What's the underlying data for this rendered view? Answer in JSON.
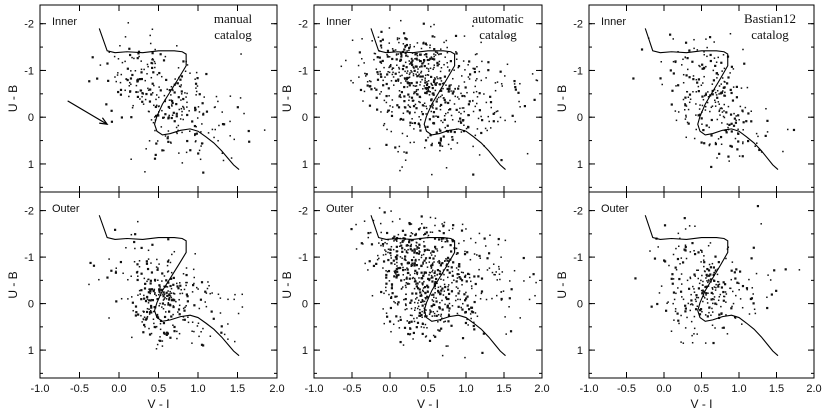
{
  "chart_data": {
    "type": "scatter",
    "title": "",
    "xlabel": "V - I",
    "ylabel": "U - B",
    "xlim": [
      -1.0,
      2.0
    ],
    "ylim": [
      1.6,
      -2.4
    ],
    "x_ticks": [
      "-1.0",
      "-0.5",
      "0.0",
      "0.5",
      "1.0",
      "1.5",
      "2.0"
    ],
    "y_ticks": [
      "-2",
      "-1",
      "0",
      "1"
    ],
    "grid": false,
    "model_track": {
      "x": [
        -0.25,
        -0.15,
        -0.05,
        0.1,
        0.3,
        0.5,
        0.7,
        0.8,
        0.85,
        0.85,
        0.75,
        0.65,
        0.55,
        0.48,
        0.45,
        0.48,
        0.55,
        0.65,
        0.78,
        0.9,
        1.0,
        1.1,
        1.2,
        1.3,
        1.38,
        1.45,
        1.52
      ],
      "y": [
        -1.9,
        -1.42,
        -1.38,
        -1.4,
        -1.38,
        -1.42,
        -1.42,
        -1.4,
        -1.35,
        -1.1,
        -0.82,
        -0.55,
        -0.28,
        -0.02,
        0.15,
        0.3,
        0.38,
        0.35,
        0.28,
        0.25,
        0.3,
        0.42,
        0.55,
        0.72,
        0.88,
        1.02,
        1.12
      ]
    },
    "columns": [
      {
        "catalog": [
          "manual",
          "catalog"
        ]
      },
      {
        "catalog": [
          "automatic",
          "catalog"
        ]
      },
      {
        "catalog": [
          "Bastian12",
          "catalog"
        ]
      }
    ],
    "rows": [
      {
        "region": "Inner"
      },
      {
        "region": "Outer"
      }
    ],
    "annotation": {
      "type": "arrow",
      "panel": "manual-inner",
      "from": [
        -0.65,
        -0.35
      ],
      "to": [
        -0.15,
        0.15
      ]
    },
    "panels": [
      {
        "id": "manual-inner",
        "points": {
          "seed": 11,
          "n": 300,
          "clusters": [
            [
              0.55,
              -0.3,
              0.28,
              0.55,
              0.55
            ],
            [
              0.15,
              -1.0,
              0.3,
              0.35,
              0.2
            ],
            [
              1.0,
              0.2,
              0.3,
              0.4,
              0.25
            ]
          ]
        }
      },
      {
        "id": "automatic-inner",
        "points": {
          "seed": 23,
          "n": 650,
          "clusters": [
            [
              0.3,
              -1.05,
              0.32,
              0.4,
              0.45
            ],
            [
              0.5,
              -0.2,
              0.32,
              0.55,
              0.35
            ],
            [
              1.1,
              -0.4,
              0.4,
              0.5,
              0.2
            ]
          ]
        }
      },
      {
        "id": "bastian12-inner",
        "points": {
          "seed": 37,
          "n": 260,
          "clusters": [
            [
              0.6,
              -0.45,
              0.25,
              0.5,
              0.6
            ],
            [
              0.9,
              0.25,
              0.3,
              0.4,
              0.25
            ],
            [
              0.2,
              -1.2,
              0.25,
              0.3,
              0.15
            ]
          ]
        }
      },
      {
        "id": "manual-outer",
        "points": {
          "seed": 41,
          "n": 320,
          "clusters": [
            [
              0.5,
              -0.05,
              0.22,
              0.45,
              0.6
            ],
            [
              0.2,
              -0.9,
              0.3,
              0.4,
              0.2
            ],
            [
              1.0,
              0.1,
              0.35,
              0.45,
              0.2
            ]
          ]
        }
      },
      {
        "id": "automatic-outer",
        "points": {
          "seed": 53,
          "n": 720,
          "clusters": [
            [
              0.3,
              -1.1,
              0.32,
              0.35,
              0.4
            ],
            [
              0.5,
              -0.1,
              0.3,
              0.5,
              0.4
            ],
            [
              1.0,
              -0.5,
              0.45,
              0.55,
              0.2
            ]
          ]
        }
      },
      {
        "id": "bastian12-outer",
        "points": {
          "seed": 67,
          "n": 280,
          "clusters": [
            [
              0.55,
              -0.2,
              0.22,
              0.45,
              0.65
            ],
            [
              0.9,
              -0.5,
              0.35,
              0.5,
              0.2
            ],
            [
              0.2,
              -1.0,
              0.25,
              0.35,
              0.15
            ]
          ]
        }
      }
    ]
  }
}
